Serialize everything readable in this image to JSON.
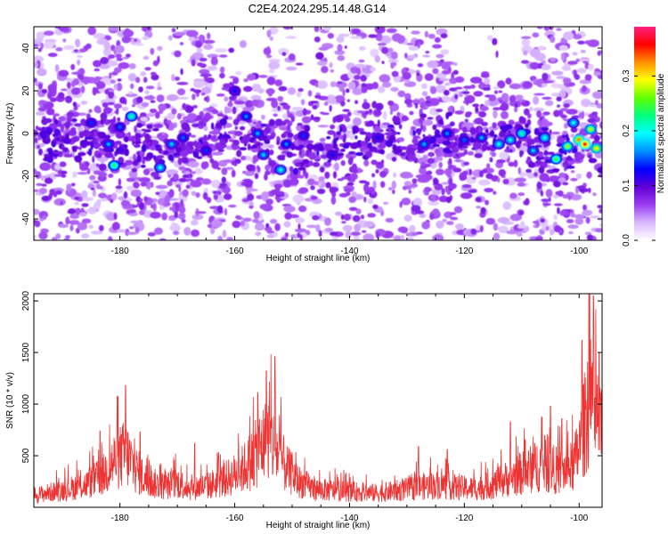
{
  "title": "C2E4.2024.295.14.48.G14",
  "chart_data": [
    {
      "type": "heatmap",
      "xlabel": "Height of straight line (km)",
      "ylabel": "Frequency (Hz)",
      "xlim": [
        -195,
        -96
      ],
      "ylim": [
        -50,
        50
      ],
      "xticks": [
        -180,
        -160,
        -140,
        -120,
        -100
      ],
      "yticks": [
        -40,
        -20,
        0,
        20,
        40
      ],
      "colorbar": {
        "label": "Normalized spectral amplitude",
        "range": [
          0.0,
          0.39
        ],
        "ticks": [
          0.0,
          0.1,
          0.2,
          0.3
        ],
        "colors": [
          "#ffffff",
          "#d9b8ff",
          "#9a3cf0",
          "#6000d8",
          "#0000ff",
          "#0090ff",
          "#00ffff",
          "#00ff80",
          "#60ff00",
          "#ffff00",
          "#ff9000",
          "#ff0000",
          "#ff2080"
        ]
      },
      "band": {
        "center_hz": [
          [
            -195,
            -4
          ],
          [
            -185,
            -3
          ],
          [
            -180,
            -4
          ],
          [
            -170,
            -8
          ],
          [
            -160,
            0
          ],
          [
            -150,
            -8
          ],
          [
            -140,
            -5
          ],
          [
            -130,
            -2
          ],
          [
            -120,
            -2
          ],
          [
            -110,
            -2
          ],
          [
            -104,
            -8
          ],
          [
            -99,
            -4
          ],
          [
            -96,
            -7
          ]
        ],
        "half_width_hz": 12
      },
      "hotspots": [
        {
          "x": -181,
          "y": -15,
          "v": 0.24
        },
        {
          "x": -178,
          "y": 8,
          "v": 0.22
        },
        {
          "x": -182,
          "y": -5,
          "v": 0.17
        },
        {
          "x": -185,
          "y": 5,
          "v": 0.14
        },
        {
          "x": -180,
          "y": 3,
          "v": 0.15
        },
        {
          "x": -173,
          "y": -16,
          "v": 0.2
        },
        {
          "x": -171,
          "y": -5,
          "v": 0.18
        },
        {
          "x": -169,
          "y": -2,
          "v": 0.15
        },
        {
          "x": -165,
          "y": -8,
          "v": 0.14
        },
        {
          "x": -160,
          "y": 20,
          "v": 0.13
        },
        {
          "x": -158,
          "y": 8,
          "v": 0.16
        },
        {
          "x": -156,
          "y": 0,
          "v": 0.17
        },
        {
          "x": -155,
          "y": -10,
          "v": 0.18
        },
        {
          "x": -152,
          "y": -17,
          "v": 0.2
        },
        {
          "x": -151,
          "y": -5,
          "v": 0.16
        },
        {
          "x": -148,
          "y": -1,
          "v": 0.14
        },
        {
          "x": -143,
          "y": -10,
          "v": 0.13
        },
        {
          "x": -135,
          "y": -2,
          "v": 0.13
        },
        {
          "x": -127,
          "y": -5,
          "v": 0.17
        },
        {
          "x": -123,
          "y": 0,
          "v": 0.16
        },
        {
          "x": -120,
          "y": -3,
          "v": 0.15
        },
        {
          "x": -117,
          "y": -2,
          "v": 0.17
        },
        {
          "x": -114,
          "y": -5,
          "v": 0.2
        },
        {
          "x": -112,
          "y": -3,
          "v": 0.2
        },
        {
          "x": -110,
          "y": 0,
          "v": 0.22
        },
        {
          "x": -108,
          "y": -8,
          "v": 0.18
        },
        {
          "x": -106,
          "y": -2,
          "v": 0.21
        },
        {
          "x": -104,
          "y": -12,
          "v": 0.25
        },
        {
          "x": -102,
          "y": -6,
          "v": 0.27
        },
        {
          "x": -101,
          "y": 5,
          "v": 0.2
        },
        {
          "x": -100,
          "y": -3,
          "v": 0.33
        },
        {
          "x": -99,
          "y": -5,
          "v": 0.36
        },
        {
          "x": -98,
          "y": 2,
          "v": 0.28
        },
        {
          "x": -97,
          "y": -7,
          "v": 0.3
        }
      ]
    },
    {
      "type": "line",
      "xlabel": "Height of straight line (km)",
      "ylabel": "SNR (10 * v/v)",
      "xlim": [
        -195,
        -96
      ],
      "ylim": [
        0,
        2070
      ],
      "xticks": [
        -180,
        -160,
        -140,
        -120,
        -100
      ],
      "yticks": [
        500,
        1000,
        1500,
        2000
      ],
      "line_color": "#ee3333",
      "series": [
        {
          "envelope": {
            "x": [
              -195,
              -190,
              -186,
              -183,
              -181,
              -179,
              -177,
              -175,
              -172,
              -170,
              -168,
              -165,
              -162,
              -159,
              -157,
              -155,
              -154,
              -153,
              -151,
              -149,
              -146,
              -142,
              -138,
              -135,
              -131,
              -127,
              -124,
              -121,
              -118,
              -115,
              -112,
              -109,
              -107,
              -105,
              -103,
              -101,
              -99.5,
              -98.5,
              -97.5,
              -97,
              -96
            ],
            "y": [
              160,
              230,
              300,
              420,
              620,
              720,
              480,
              330,
              280,
              330,
              260,
              280,
              360,
              480,
              640,
              850,
              930,
              780,
              520,
              350,
              240,
              220,
              200,
              190,
              230,
              280,
              300,
              260,
              250,
              300,
              400,
              480,
              570,
              530,
              460,
              550,
              900,
              1400,
              1000,
              1200,
              850
            ]
          },
          "peaks": [
            {
              "x": -179,
              "y": 1180
            },
            {
              "x": -183.5,
              "y": 740
            },
            {
              "x": -176.5,
              "y": 730
            },
            {
              "x": -154.5,
              "y": 1320
            },
            {
              "x": -153,
              "y": 1460
            },
            {
              "x": -156,
              "y": 1110
            },
            {
              "x": -167,
              "y": 620
            },
            {
              "x": -128,
              "y": 590
            },
            {
              "x": -123,
              "y": 560
            },
            {
              "x": -112,
              "y": 830
            },
            {
              "x": -105,
              "y": 980
            },
            {
              "x": -103,
              "y": 860
            },
            {
              "x": -99.5,
              "y": 1620
            },
            {
              "x": -98.3,
              "y": 2070
            },
            {
              "x": -97.5,
              "y": 2050
            },
            {
              "x": -96.5,
              "y": 1500
            }
          ]
        }
      ]
    }
  ]
}
